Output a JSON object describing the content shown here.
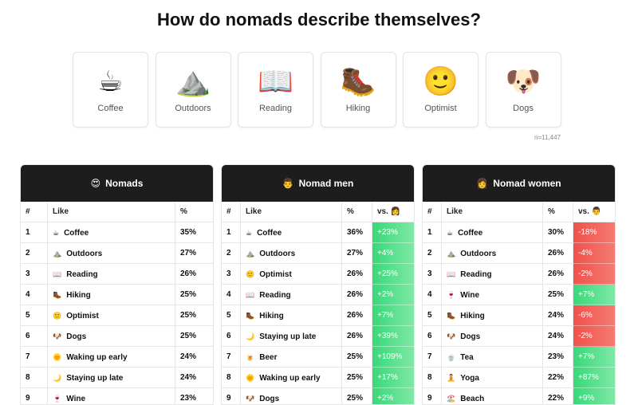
{
  "title": "How do nomads describe themselves?",
  "cards": [
    {
      "icon": "☕",
      "label": "Coffee"
    },
    {
      "icon": "⛰️",
      "label": "Outdoors"
    },
    {
      "icon": "📖",
      "label": "Reading"
    },
    {
      "icon": "🥾",
      "label": "Hiking"
    },
    {
      "icon": "🙂",
      "label": "Optimist"
    },
    {
      "icon": "🐶",
      "label": "Dogs"
    }
  ],
  "sample_size": "n=11,447",
  "tables": [
    {
      "icon": "😍",
      "title": "Nomads",
      "columns": [
        "#",
        "Like",
        "%"
      ],
      "rows": [
        {
          "rank": "1",
          "icon": "☕",
          "like": "Coffee",
          "pct": "35%"
        },
        {
          "rank": "2",
          "icon": "⛰️",
          "like": "Outdoors",
          "pct": "27%"
        },
        {
          "rank": "3",
          "icon": "📖",
          "like": "Reading",
          "pct": "26%"
        },
        {
          "rank": "4",
          "icon": "🥾",
          "like": "Hiking",
          "pct": "25%"
        },
        {
          "rank": "5",
          "icon": "🙂",
          "like": "Optimist",
          "pct": "25%"
        },
        {
          "rank": "6",
          "icon": "🐶",
          "like": "Dogs",
          "pct": "25%"
        },
        {
          "rank": "7",
          "icon": "🌞",
          "like": "Waking up early",
          "pct": "24%"
        },
        {
          "rank": "8",
          "icon": "🌙",
          "like": "Staying up late",
          "pct": "24%"
        },
        {
          "rank": "9",
          "icon": "🍷",
          "like": "Wine",
          "pct": "23%"
        }
      ]
    },
    {
      "icon": "👨",
      "title": "Nomad men",
      "columns": [
        "#",
        "Like",
        "%",
        "vs. 👩"
      ],
      "rows": [
        {
          "rank": "1",
          "icon": "☕",
          "like": "Coffee",
          "pct": "36%",
          "vs": "+23%"
        },
        {
          "rank": "2",
          "icon": "⛰️",
          "like": "Outdoors",
          "pct": "27%",
          "vs": "+4%"
        },
        {
          "rank": "3",
          "icon": "🙂",
          "like": "Optimist",
          "pct": "26%",
          "vs": "+25%"
        },
        {
          "rank": "4",
          "icon": "📖",
          "like": "Reading",
          "pct": "26%",
          "vs": "+2%"
        },
        {
          "rank": "5",
          "icon": "🥾",
          "like": "Hiking",
          "pct": "26%",
          "vs": "+7%"
        },
        {
          "rank": "6",
          "icon": "🌙",
          "like": "Staying up late",
          "pct": "26%",
          "vs": "+39%"
        },
        {
          "rank": "7",
          "icon": "🍺",
          "like": "Beer",
          "pct": "25%",
          "vs": "+109%"
        },
        {
          "rank": "8",
          "icon": "🌞",
          "like": "Waking up early",
          "pct": "25%",
          "vs": "+17%"
        },
        {
          "rank": "9",
          "icon": "🐶",
          "like": "Dogs",
          "pct": "25%",
          "vs": "+2%"
        }
      ]
    },
    {
      "icon": "👩",
      "title": "Nomad women",
      "columns": [
        "#",
        "Like",
        "%",
        "vs. 👨"
      ],
      "rows": [
        {
          "rank": "1",
          "icon": "☕",
          "like": "Coffee",
          "pct": "30%",
          "vs": "-18%"
        },
        {
          "rank": "2",
          "icon": "⛰️",
          "like": "Outdoors",
          "pct": "26%",
          "vs": "-4%"
        },
        {
          "rank": "3",
          "icon": "📖",
          "like": "Reading",
          "pct": "26%",
          "vs": "-2%"
        },
        {
          "rank": "4",
          "icon": "🍷",
          "like": "Wine",
          "pct": "25%",
          "vs": "+7%"
        },
        {
          "rank": "5",
          "icon": "🥾",
          "like": "Hiking",
          "pct": "24%",
          "vs": "-6%"
        },
        {
          "rank": "6",
          "icon": "🐶",
          "like": "Dogs",
          "pct": "24%",
          "vs": "-2%"
        },
        {
          "rank": "7",
          "icon": "🍵",
          "like": "Tea",
          "pct": "23%",
          "vs": "+7%"
        },
        {
          "rank": "8",
          "icon": "🧘",
          "like": "Yoga",
          "pct": "22%",
          "vs": "+87%"
        },
        {
          "rank": "9",
          "icon": "🏖️",
          "like": "Beach",
          "pct": "22%",
          "vs": "+9%"
        }
      ]
    }
  ]
}
